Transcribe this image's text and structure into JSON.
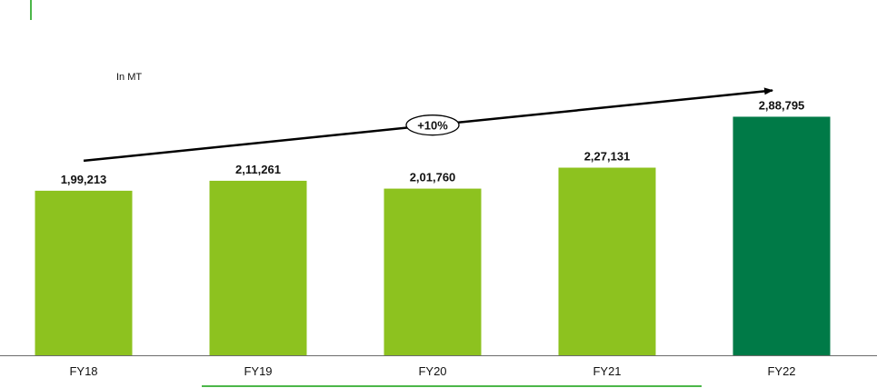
{
  "colors": {
    "bar_default": "#8dc21f",
    "bar_highlight": "#007a47",
    "accent_line": "#4cb749",
    "axis": "#6b6b6b",
    "text": "#111111",
    "arrow": "#000000"
  },
  "unit_label": "In MT",
  "growth_label": "+10%",
  "chart_data": {
    "type": "bar",
    "categories": [
      "FY18",
      "FY19",
      "FY20",
      "FY21",
      "FY22"
    ],
    "values": [
      199213,
      211261,
      201760,
      227131,
      288795
    ],
    "data_labels": [
      "1,99,213",
      "2,11,261",
      "2,01,760",
      "2,27,131",
      "2,88,795"
    ],
    "highlight_index": 4,
    "title": "",
    "xlabel": "",
    "ylabel": "In MT",
    "ylim": [
      0,
      330000
    ],
    "grid": false,
    "annotations": [
      {
        "type": "growth-arrow",
        "from": "FY18",
        "to": "FY22",
        "label": "+10%"
      }
    ]
  }
}
